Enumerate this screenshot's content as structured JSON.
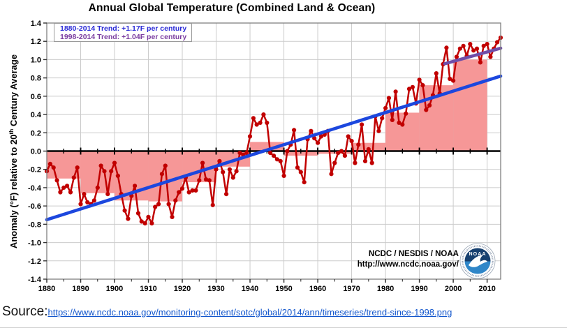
{
  "title": "Annual Global Temperature (Combined Land & Ocean)",
  "legend": {
    "entries": [
      {
        "label": "1880-2014 Trend: +1.17F per century",
        "color": "#2929d6"
      },
      {
        "label": "1998-2014 Trend: +1.04F per century",
        "color": "#7a3da0"
      }
    ]
  },
  "y_axis_title": {
    "prefix": "Anomaly (°F) relative to 20",
    "sup": "th",
    "suffix": " Century Average"
  },
  "attribution": {
    "line1": "NCDC / NESDIS / NOAA",
    "line2": "http://www.ncdc.noaa.gov/",
    "logo_text": "NOAA"
  },
  "source": {
    "label": "Source:",
    "url": "https://www.ncdc.noaa.gov/monitoring-content/sotc/global/2014/ann/timeseries/trend-since-1998.png"
  },
  "chart_data": {
    "type": "line",
    "title": "Annual Global Temperature (Combined Land & Ocean)",
    "xlabel": "",
    "ylabel": "Anomaly (°F) relative to 20th Century Average",
    "xlim": [
      1880,
      2014
    ],
    "ylim": [
      -1.4,
      1.4
    ],
    "y_step": 0.2,
    "grid": true,
    "legend_position": "top-left",
    "x_start": 1880,
    "x_ticks": [
      1880,
      1890,
      1900,
      1910,
      1920,
      1930,
      1940,
      1950,
      1960,
      1970,
      1980,
      1990,
      2000,
      2010
    ],
    "series": [
      {
        "name": "Annual temperature anomaly (°F)",
        "color": "#c10000",
        "marker": "circle",
        "values": [
          -0.22,
          -0.14,
          -0.18,
          -0.32,
          -0.45,
          -0.4,
          -0.38,
          -0.45,
          -0.29,
          -0.18,
          -0.58,
          -0.47,
          -0.56,
          -0.58,
          -0.54,
          -0.4,
          -0.16,
          -0.22,
          -0.47,
          -0.22,
          -0.13,
          -0.27,
          -0.47,
          -0.65,
          -0.74,
          -0.49,
          -0.38,
          -0.68,
          -0.77,
          -0.79,
          -0.72,
          -0.79,
          -0.61,
          -0.58,
          -0.25,
          -0.16,
          -0.58,
          -0.72,
          -0.54,
          -0.45,
          -0.41,
          -0.29,
          -0.45,
          -0.43,
          -0.43,
          -0.32,
          -0.13,
          -0.31,
          -0.32,
          -0.59,
          -0.2,
          -0.11,
          -0.23,
          -0.47,
          -0.2,
          -0.29,
          -0.22,
          -0.02,
          -0.04,
          -0.02,
          0.16,
          0.36,
          0.29,
          0.31,
          0.4,
          0.31,
          -0.02,
          -0.05,
          -0.09,
          -0.11,
          -0.27,
          0.0,
          0.07,
          0.23,
          -0.18,
          -0.23,
          -0.34,
          0.13,
          0.22,
          0.14,
          0.09,
          0.16,
          0.18,
          0.22,
          -0.25,
          -0.13,
          -0.02,
          0.0,
          -0.05,
          0.16,
          0.11,
          -0.13,
          0.07,
          0.29,
          -0.11,
          0.02,
          -0.13,
          0.38,
          0.22,
          0.36,
          0.47,
          0.58,
          0.34,
          0.65,
          0.31,
          0.29,
          0.41,
          0.68,
          0.7,
          0.52,
          0.78,
          0.72,
          0.45,
          0.5,
          0.61,
          0.85,
          0.63,
          0.95,
          1.13,
          0.79,
          0.77,
          1.03,
          1.12,
          1.15,
          1.04,
          1.17,
          1.1,
          1.12,
          0.97,
          1.15,
          1.17,
          1.03,
          1.12,
          1.19,
          1.24
        ]
      }
    ],
    "decadal_average_blocks": {
      "name": "Decadal average anomaly (°F)",
      "color": "#f69797",
      "blocks": [
        {
          "start": 1880,
          "end": 1890,
          "value": -0.3
        },
        {
          "start": 1890,
          "end": 1900,
          "value": -0.46
        },
        {
          "start": 1900,
          "end": 1910,
          "value": -0.54
        },
        {
          "start": 1910,
          "end": 1920,
          "value": -0.55
        },
        {
          "start": 1920,
          "end": 1930,
          "value": -0.34
        },
        {
          "start": 1930,
          "end": 1940,
          "value": -0.17
        },
        {
          "start": 1940,
          "end": 1950,
          "value": 0.1
        },
        {
          "start": 1950,
          "end": 1960,
          "value": -0.05
        },
        {
          "start": 1960,
          "end": 1970,
          "value": -0.03
        },
        {
          "start": 1970,
          "end": 1980,
          "value": 0.09
        },
        {
          "start": 1980,
          "end": 1990,
          "value": 0.42
        },
        {
          "start": 1990,
          "end": 2000,
          "value": 0.72
        },
        {
          "start": 2000,
          "end": 2010,
          "value": 1.0
        }
      ]
    },
    "trend_lines": [
      {
        "name": "trend-1880-2014",
        "label": "1880-2014 Trend: +1.17F per century",
        "color": "#1c47de",
        "from": {
          "x": 1880,
          "y": -0.75
        },
        "to": {
          "x": 2014,
          "y": 0.82
        }
      },
      {
        "name": "trend-1998-2014",
        "label": "1998-2014 Trend: +1.04F per century",
        "color": "#6f4da8",
        "from": {
          "x": 1997.5,
          "y": 0.955
        },
        "to": {
          "x": 2014,
          "y": 1.125
        }
      }
    ]
  }
}
